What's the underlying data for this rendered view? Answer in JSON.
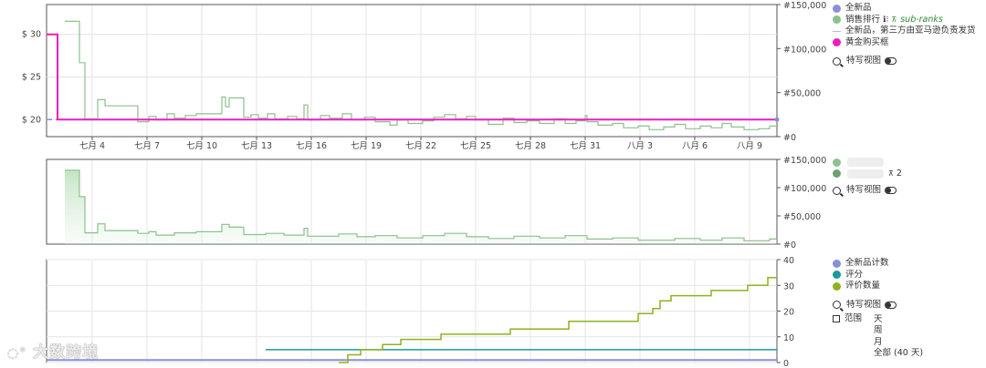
{
  "chart_data": [
    {
      "type": "line",
      "title": "",
      "x_ticks": [
        "七月 4",
        "七月 7",
        "七月 10",
        "七月 13",
        "七月 16",
        "七月 19",
        "七月 22",
        "七月 25",
        "七月 28",
        "七月 31",
        "八月 3",
        "八月 6",
        "八月 9"
      ],
      "y_left_ticks": [
        "$ 30",
        "$ 25",
        "$ 20"
      ],
      "y_right_ticks": [
        "#150,000",
        "#100,000",
        "#50,000",
        "#0"
      ],
      "ylim_left": [
        18,
        33.5
      ],
      "ylim_right": [
        0,
        150000
      ],
      "series": [
        {
          "name": "全新品",
          "axis": "left",
          "color": "#8a8fd8",
          "points": [
            [
              0,
              20
            ],
            [
              40,
              20
            ]
          ]
        },
        {
          "name": "销售排行",
          "axis": "right",
          "color": "#8dc08d",
          "points": [
            [
              1,
              131000
            ],
            [
              1.8,
              131000
            ],
            [
              1.8,
              84000
            ],
            [
              2.1,
              84000
            ],
            [
              2.1,
              20000
            ],
            [
              2.8,
              20000
            ],
            [
              2.8,
              42000
            ],
            [
              3.2,
              42000
            ],
            [
              3.2,
              35000
            ],
            [
              5,
              35000
            ],
            [
              5,
              17000
            ],
            [
              5.6,
              17000
            ],
            [
              5.6,
              23000
            ],
            [
              6,
              23000
            ],
            [
              6,
              19000
            ],
            [
              6.6,
              19000
            ],
            [
              6.6,
              26000
            ],
            [
              7,
              26000
            ],
            [
              7,
              21000
            ],
            [
              7.6,
              21000
            ],
            [
              7.6,
              24000
            ],
            [
              8.2,
              24000
            ],
            [
              8.2,
              26000
            ],
            [
              9.6,
              26000
            ],
            [
              9.6,
              45000
            ],
            [
              9.8,
              45000
            ],
            [
              9.8,
              34000
            ],
            [
              10,
              34000
            ],
            [
              10,
              44000
            ],
            [
              10.8,
              44000
            ],
            [
              10.8,
              22000
            ],
            [
              11.2,
              22000
            ],
            [
              11.2,
              25000
            ],
            [
              11.6,
              25000
            ],
            [
              11.6,
              21000
            ],
            [
              12.1,
              21000
            ],
            [
              12.1,
              26000
            ],
            [
              12.5,
              26000
            ],
            [
              12.5,
              20000
            ],
            [
              13.2,
              20000
            ],
            [
              13.2,
              23000
            ],
            [
              13.7,
              23000
            ],
            [
              13.7,
              20000
            ],
            [
              14.1,
              20000
            ],
            [
              14.1,
              36000
            ],
            [
              14.3,
              36000
            ],
            [
              14.3,
              19000
            ],
            [
              15,
              19000
            ],
            [
              15,
              24000
            ],
            [
              15.5,
              24000
            ],
            [
              15.5,
              21000
            ],
            [
              16.2,
              21000
            ],
            [
              16.2,
              26000
            ],
            [
              16.7,
              26000
            ],
            [
              16.7,
              19000
            ],
            [
              17.4,
              19000
            ],
            [
              17.4,
              22000
            ],
            [
              18,
              22000
            ],
            [
              18,
              17000
            ],
            [
              18.8,
              17000
            ],
            [
              18.8,
              13000
            ],
            [
              19.2,
              13000
            ],
            [
              19.2,
              19000
            ],
            [
              19.8,
              19000
            ],
            [
              19.8,
              15000
            ],
            [
              20.6,
              15000
            ],
            [
              20.6,
              18000
            ],
            [
              21.2,
              18000
            ],
            [
              21.2,
              22000
            ],
            [
              21.8,
              22000
            ],
            [
              21.8,
              25000
            ],
            [
              22.4,
              25000
            ],
            [
              22.4,
              20000
            ],
            [
              23,
              20000
            ],
            [
              23,
              23000
            ],
            [
              23.5,
              23000
            ],
            [
              23.5,
              19000
            ],
            [
              24.2,
              19000
            ],
            [
              24.2,
              14000
            ],
            [
              25,
              14000
            ],
            [
              25,
              21000
            ],
            [
              25.6,
              21000
            ],
            [
              25.6,
              16000
            ],
            [
              26.3,
              16000
            ],
            [
              26.3,
              18000
            ],
            [
              27,
              18000
            ],
            [
              27,
              15000
            ],
            [
              27.8,
              15000
            ],
            [
              27.8,
              20000
            ],
            [
              28.4,
              20000
            ],
            [
              28.4,
              15000
            ],
            [
              29,
              15000
            ],
            [
              29,
              18000
            ],
            [
              29.5,
              18000
            ],
            [
              29.5,
              24000
            ],
            [
              29.6,
              24000
            ],
            [
              29.6,
              17000
            ],
            [
              30.2,
              17000
            ],
            [
              30.2,
              13000
            ],
            [
              31,
              13000
            ],
            [
              31,
              15000
            ],
            [
              31.6,
              15000
            ],
            [
              31.6,
              10000
            ],
            [
              32.4,
              10000
            ],
            [
              32.4,
              12000
            ],
            [
              33,
              12000
            ],
            [
              33,
              8000
            ],
            [
              33.8,
              8000
            ],
            [
              33.8,
              11000
            ],
            [
              34.4,
              11000
            ],
            [
              34.4,
              14000
            ],
            [
              35,
              14000
            ],
            [
              35,
              9000
            ],
            [
              35.8,
              9000
            ],
            [
              35.8,
              12000
            ],
            [
              36.4,
              12000
            ],
            [
              36.4,
              10000
            ],
            [
              37,
              10000
            ],
            [
              37,
              15000
            ],
            [
              37.5,
              15000
            ],
            [
              37.5,
              11000
            ],
            [
              38.2,
              11000
            ],
            [
              38.2,
              8000
            ],
            [
              39,
              8000
            ],
            [
              39,
              9000
            ],
            [
              39.6,
              9000
            ],
            [
              39.6,
              12000
            ],
            [
              40,
              12000
            ]
          ]
        },
        {
          "name": "全新品，第三方由亚马逊负责发货",
          "axis": "left",
          "color": "#999999",
          "points": []
        },
        {
          "name": "黄金购买框",
          "axis": "left",
          "color": "#ee1ebe",
          "points": [
            [
              0,
              30
            ],
            [
              0.6,
              30
            ],
            [
              0.6,
              20
            ],
            [
              40,
              20
            ]
          ]
        }
      ],
      "legend": [
        "全新品",
        "销售排行",
        "全新品，第三方由亚马逊负责发货",
        "黄金购买框"
      ],
      "sub_ranks_label": "sub-ranks",
      "legend_placement": "right"
    },
    {
      "type": "area",
      "title": "",
      "y_right_ticks": [
        "#150,000",
        "#100,000",
        "#50,000",
        "#0"
      ],
      "ylim_right": [
        0,
        150000
      ],
      "series": [
        {
          "name": "",
          "color": "#8dc08d",
          "points": [
            [
              1,
              131000
            ],
            [
              1.8,
              131000
            ],
            [
              1.8,
              84000
            ],
            [
              2.1,
              84000
            ],
            [
              2.1,
              20000
            ],
            [
              2.8,
              20000
            ],
            [
              2.8,
              36000
            ],
            [
              3.2,
              36000
            ],
            [
              3.2,
              24000
            ],
            [
              5,
              24000
            ],
            [
              5,
              19000
            ],
            [
              5.6,
              19000
            ],
            [
              5.6,
              22000
            ],
            [
              6,
              22000
            ],
            [
              6,
              16000
            ],
            [
              7,
              16000
            ],
            [
              7,
              20000
            ],
            [
              8.2,
              20000
            ],
            [
              8.2,
              22000
            ],
            [
              9.6,
              22000
            ],
            [
              9.6,
              35000
            ],
            [
              10,
              35000
            ],
            [
              10,
              30000
            ],
            [
              10.8,
              30000
            ],
            [
              10.8,
              17000
            ],
            [
              12,
              17000
            ],
            [
              12,
              19000
            ],
            [
              13,
              19000
            ],
            [
              13,
              16000
            ],
            [
              14.1,
              16000
            ],
            [
              14.1,
              28000
            ],
            [
              14.3,
              28000
            ],
            [
              14.3,
              14000
            ],
            [
              16,
              14000
            ],
            [
              16,
              18000
            ],
            [
              17,
              18000
            ],
            [
              17,
              13000
            ],
            [
              18,
              13000
            ],
            [
              18,
              15000
            ],
            [
              19.2,
              15000
            ],
            [
              19.2,
              11000
            ],
            [
              20.6,
              11000
            ],
            [
              20.6,
              15000
            ],
            [
              21.8,
              15000
            ],
            [
              21.8,
              19000
            ],
            [
              23,
              19000
            ],
            [
              23,
              13000
            ],
            [
              24.2,
              13000
            ],
            [
              24.2,
              10000
            ],
            [
              25.6,
              10000
            ],
            [
              25.6,
              14000
            ],
            [
              27,
              14000
            ],
            [
              27,
              11000
            ],
            [
              28.4,
              11000
            ],
            [
              28.4,
              15000
            ],
            [
              29.6,
              15000
            ],
            [
              29.6,
              9000
            ],
            [
              31,
              9000
            ],
            [
              31,
              11000
            ],
            [
              32.4,
              11000
            ],
            [
              32.4,
              7000
            ],
            [
              34.4,
              7000
            ],
            [
              34.4,
              10000
            ],
            [
              35.8,
              10000
            ],
            [
              35.8,
              7000
            ],
            [
              37,
              7000
            ],
            [
              37,
              11000
            ],
            [
              38.2,
              11000
            ],
            [
              38.2,
              6000
            ],
            [
              39.6,
              6000
            ],
            [
              39.6,
              9000
            ],
            [
              40,
              9000
            ]
          ]
        },
        {
          "name": "",
          "color": "#6f9f6f",
          "points": []
        }
      ],
      "legend_suffix": "2",
      "legend_placement": "right"
    },
    {
      "type": "line",
      "title": "",
      "y_right_ticks": [
        "40",
        "30",
        "20",
        "10",
        "0"
      ],
      "ylim_right": [
        0,
        40
      ],
      "series": [
        {
          "name": "全新品计数",
          "color": "#8a8fd8",
          "points": [
            [
              0,
              1
            ],
            [
              40,
              1
            ]
          ]
        },
        {
          "name": "评分",
          "color": "#1a9a9a",
          "points": [
            [
              12,
              5
            ],
            [
              40,
              5
            ]
          ]
        },
        {
          "name": "评价数量",
          "color": "#8fb21e",
          "points": [
            [
              16,
              0
            ],
            [
              16.5,
              0
            ],
            [
              16.5,
              3
            ],
            [
              17.2,
              3
            ],
            [
              17.2,
              5
            ],
            [
              18.4,
              5
            ],
            [
              18.4,
              7
            ],
            [
              19.4,
              7
            ],
            [
              19.4,
              9
            ],
            [
              21.6,
              9
            ],
            [
              21.6,
              11
            ],
            [
              25.4,
              11
            ],
            [
              25.4,
              13
            ],
            [
              28.6,
              13
            ],
            [
              28.6,
              16
            ],
            [
              32.4,
              16
            ],
            [
              32.4,
              19
            ],
            [
              33.2,
              19
            ],
            [
              33.2,
              21
            ],
            [
              33.6,
              21
            ],
            [
              33.6,
              24
            ],
            [
              34.2,
              24
            ],
            [
              34.2,
              26
            ],
            [
              36.4,
              26
            ],
            [
              36.4,
              28
            ],
            [
              38.4,
              28
            ],
            [
              38.4,
              30
            ],
            [
              39.5,
              30
            ],
            [
              39.5,
              33
            ],
            [
              40,
              33
            ]
          ]
        }
      ],
      "legend": [
        "全新品计数",
        "评分",
        "评价数量"
      ],
      "legend_placement": "right"
    }
  ],
  "controls": {
    "closeup_label": "特写视图",
    "range_label": "范围",
    "range_options": [
      "天",
      "周",
      "月",
      "全部 (40 天)"
    ]
  },
  "colors": {
    "grid": "#e4e4e4",
    "axis_text": "#444444",
    "new": "#8a8fd8",
    "rank": "#8dc08d",
    "rank_dark": "#6f9f6f",
    "buybox": "#ee1ebe",
    "rating": "#1a9a9a",
    "reviews": "#8fb21e"
  },
  "watermark": "大数跨境"
}
